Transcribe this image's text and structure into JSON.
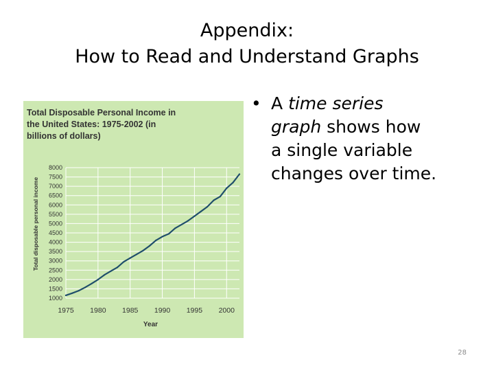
{
  "slide": {
    "title_line1": "Appendix:",
    "title_line2": "How to Read and Understand Graphs",
    "bullet": {
      "marker": "•",
      "line1_prefix": "A ",
      "line1_emphasis": "time series",
      "line2_emphasis": "graph",
      "line2_suffix": " shows how",
      "line3": "a single variable",
      "line4": "changes over time."
    },
    "page_number": "28"
  },
  "colors": {
    "panel_background": "#cde8b2",
    "grid": "#ffffff",
    "line": "#1f4e6b",
    "text": "#333333"
  },
  "chart_data": {
    "type": "line",
    "title_lines": [
      "Total Disposable Personal Income in",
      "the United States:  1975-2002 (in",
      "billions of dollars)"
    ],
    "xlabel": "Year",
    "ylabel": "Total disposable personal income",
    "xlim": [
      1975,
      2002
    ],
    "ylim": [
      1000,
      8000
    ],
    "x_ticks": [
      "1975",
      "1980",
      "1985",
      "1990",
      "1995",
      "2000"
    ],
    "y_ticks": [
      "8000",
      "7500",
      "7000",
      "6500",
      "6000",
      "5500",
      "5000",
      "4500",
      "4000",
      "3500",
      "3000",
      "2500",
      "2000",
      "1500",
      "1000"
    ],
    "grid": true,
    "series": [
      {
        "x": [
          1975,
          1976,
          1977,
          1978,
          1979,
          1980,
          1981,
          1982,
          1983,
          1984,
          1985,
          1986,
          1987,
          1988,
          1989,
          1990,
          1991,
          1992,
          1993,
          1994,
          1995,
          1996,
          1997,
          1998,
          1999,
          2000,
          2001,
          2002
        ],
        "values": [
          1150,
          1270,
          1400,
          1580,
          1780,
          2000,
          2250,
          2450,
          2650,
          2950,
          3150,
          3350,
          3550,
          3800,
          4100,
          4300,
          4450,
          4750,
          4950,
          5150,
          5400,
          5650,
          5900,
          6250,
          6450,
          6900,
          7200,
          7650
        ]
      }
    ]
  }
}
